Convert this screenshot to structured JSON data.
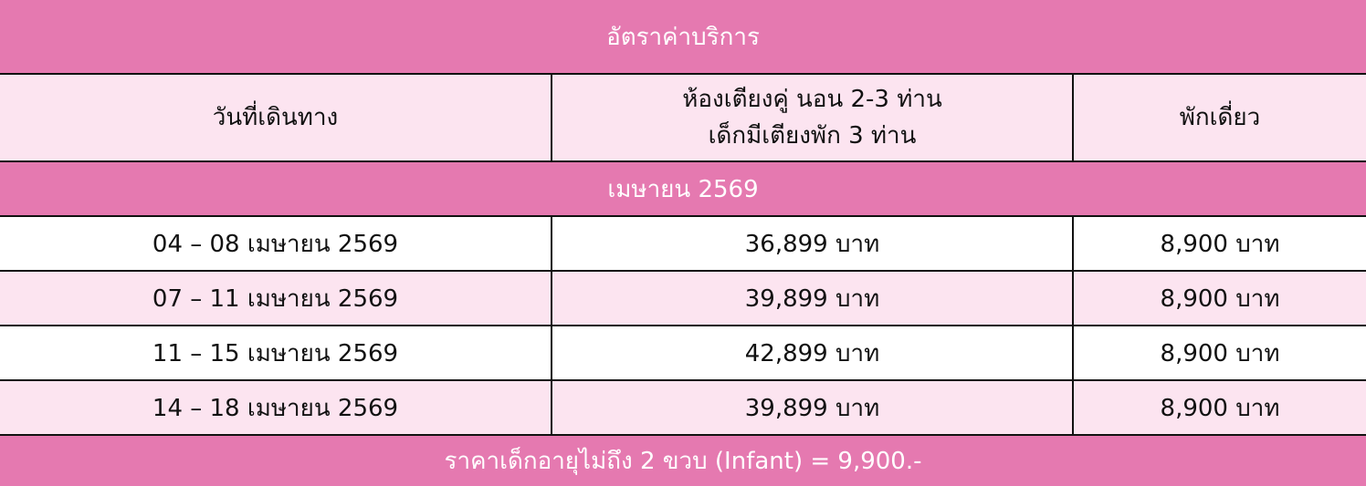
{
  "title": "อัตราค่าบริการ",
  "header": {
    "col1": "วันที่เดินทาง",
    "col2_line1": "ห้องเตียงคู่ นอน 2-3 ท่าน",
    "col2_line2": "เด็กมีเตียงพัก 3 ท่าน",
    "col3": "พักเดี่ยว"
  },
  "month": "เมษายน 2569",
  "rows": [
    {
      "date": "04 – 08 เมษายน 2569",
      "twin": "36,899 บาท",
      "single": "8,900 บาท"
    },
    {
      "date": "07 – 11 เมษายน 2569",
      "twin": "39,899 บาท",
      "single": "8,900 บาท"
    },
    {
      "date": "11 – 15 เมษายน 2569",
      "twin": "42,899 บาท",
      "single": "8,900 บาท"
    },
    {
      "date": "14 – 18 เมษายน 2569",
      "twin": "39,899 บาท",
      "single": "8,900 บาท"
    }
  ],
  "footer": "ราคาเด็กอายุไม่ถึง 2 ขวบ (Infant)  = 9,900.-",
  "colors": {
    "pink": "#e579b0",
    "light_pink": "#fce4f0"
  }
}
